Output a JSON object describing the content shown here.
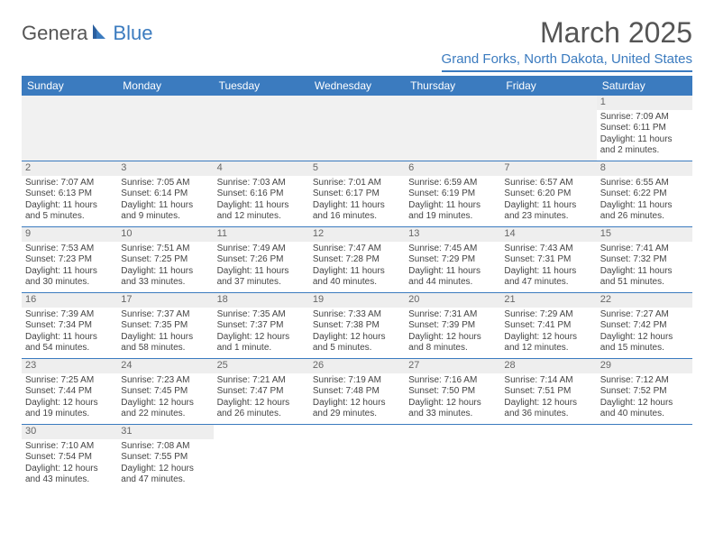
{
  "logo": {
    "part1": "Genera",
    "part2": "Blue"
  },
  "title": "March 2025",
  "location": "Grand Forks, North Dakota, United States",
  "weekdays": [
    "Sunday",
    "Monday",
    "Tuesday",
    "Wednesday",
    "Thursday",
    "Friday",
    "Saturday"
  ],
  "colors": {
    "brand": "#3b7bbf",
    "header_text": "#ffffff",
    "body_text": "#444444",
    "daynum_bg": "#eeeeee",
    "blank_bg": "#f1f1f1"
  },
  "weeks": [
    [
      null,
      null,
      null,
      null,
      null,
      null,
      {
        "n": "1",
        "sr": "Sunrise: 7:09 AM",
        "ss": "Sunset: 6:11 PM",
        "d1": "Daylight: 11 hours",
        "d2": "and 2 minutes."
      }
    ],
    [
      {
        "n": "2",
        "sr": "Sunrise: 7:07 AM",
        "ss": "Sunset: 6:13 PM",
        "d1": "Daylight: 11 hours",
        "d2": "and 5 minutes."
      },
      {
        "n": "3",
        "sr": "Sunrise: 7:05 AM",
        "ss": "Sunset: 6:14 PM",
        "d1": "Daylight: 11 hours",
        "d2": "and 9 minutes."
      },
      {
        "n": "4",
        "sr": "Sunrise: 7:03 AM",
        "ss": "Sunset: 6:16 PM",
        "d1": "Daylight: 11 hours",
        "d2": "and 12 minutes."
      },
      {
        "n": "5",
        "sr": "Sunrise: 7:01 AM",
        "ss": "Sunset: 6:17 PM",
        "d1": "Daylight: 11 hours",
        "d2": "and 16 minutes."
      },
      {
        "n": "6",
        "sr": "Sunrise: 6:59 AM",
        "ss": "Sunset: 6:19 PM",
        "d1": "Daylight: 11 hours",
        "d2": "and 19 minutes."
      },
      {
        "n": "7",
        "sr": "Sunrise: 6:57 AM",
        "ss": "Sunset: 6:20 PM",
        "d1": "Daylight: 11 hours",
        "d2": "and 23 minutes."
      },
      {
        "n": "8",
        "sr": "Sunrise: 6:55 AM",
        "ss": "Sunset: 6:22 PM",
        "d1": "Daylight: 11 hours",
        "d2": "and 26 minutes."
      }
    ],
    [
      {
        "n": "9",
        "sr": "Sunrise: 7:53 AM",
        "ss": "Sunset: 7:23 PM",
        "d1": "Daylight: 11 hours",
        "d2": "and 30 minutes."
      },
      {
        "n": "10",
        "sr": "Sunrise: 7:51 AM",
        "ss": "Sunset: 7:25 PM",
        "d1": "Daylight: 11 hours",
        "d2": "and 33 minutes."
      },
      {
        "n": "11",
        "sr": "Sunrise: 7:49 AM",
        "ss": "Sunset: 7:26 PM",
        "d1": "Daylight: 11 hours",
        "d2": "and 37 minutes."
      },
      {
        "n": "12",
        "sr": "Sunrise: 7:47 AM",
        "ss": "Sunset: 7:28 PM",
        "d1": "Daylight: 11 hours",
        "d2": "and 40 minutes."
      },
      {
        "n": "13",
        "sr": "Sunrise: 7:45 AM",
        "ss": "Sunset: 7:29 PM",
        "d1": "Daylight: 11 hours",
        "d2": "and 44 minutes."
      },
      {
        "n": "14",
        "sr": "Sunrise: 7:43 AM",
        "ss": "Sunset: 7:31 PM",
        "d1": "Daylight: 11 hours",
        "d2": "and 47 minutes."
      },
      {
        "n": "15",
        "sr": "Sunrise: 7:41 AM",
        "ss": "Sunset: 7:32 PM",
        "d1": "Daylight: 11 hours",
        "d2": "and 51 minutes."
      }
    ],
    [
      {
        "n": "16",
        "sr": "Sunrise: 7:39 AM",
        "ss": "Sunset: 7:34 PM",
        "d1": "Daylight: 11 hours",
        "d2": "and 54 minutes."
      },
      {
        "n": "17",
        "sr": "Sunrise: 7:37 AM",
        "ss": "Sunset: 7:35 PM",
        "d1": "Daylight: 11 hours",
        "d2": "and 58 minutes."
      },
      {
        "n": "18",
        "sr": "Sunrise: 7:35 AM",
        "ss": "Sunset: 7:37 PM",
        "d1": "Daylight: 12 hours",
        "d2": "and 1 minute."
      },
      {
        "n": "19",
        "sr": "Sunrise: 7:33 AM",
        "ss": "Sunset: 7:38 PM",
        "d1": "Daylight: 12 hours",
        "d2": "and 5 minutes."
      },
      {
        "n": "20",
        "sr": "Sunrise: 7:31 AM",
        "ss": "Sunset: 7:39 PM",
        "d1": "Daylight: 12 hours",
        "d2": "and 8 minutes."
      },
      {
        "n": "21",
        "sr": "Sunrise: 7:29 AM",
        "ss": "Sunset: 7:41 PM",
        "d1": "Daylight: 12 hours",
        "d2": "and 12 minutes."
      },
      {
        "n": "22",
        "sr": "Sunrise: 7:27 AM",
        "ss": "Sunset: 7:42 PM",
        "d1": "Daylight: 12 hours",
        "d2": "and 15 minutes."
      }
    ],
    [
      {
        "n": "23",
        "sr": "Sunrise: 7:25 AM",
        "ss": "Sunset: 7:44 PM",
        "d1": "Daylight: 12 hours",
        "d2": "and 19 minutes."
      },
      {
        "n": "24",
        "sr": "Sunrise: 7:23 AM",
        "ss": "Sunset: 7:45 PM",
        "d1": "Daylight: 12 hours",
        "d2": "and 22 minutes."
      },
      {
        "n": "25",
        "sr": "Sunrise: 7:21 AM",
        "ss": "Sunset: 7:47 PM",
        "d1": "Daylight: 12 hours",
        "d2": "and 26 minutes."
      },
      {
        "n": "26",
        "sr": "Sunrise: 7:19 AM",
        "ss": "Sunset: 7:48 PM",
        "d1": "Daylight: 12 hours",
        "d2": "and 29 minutes."
      },
      {
        "n": "27",
        "sr": "Sunrise: 7:16 AM",
        "ss": "Sunset: 7:50 PM",
        "d1": "Daylight: 12 hours",
        "d2": "and 33 minutes."
      },
      {
        "n": "28",
        "sr": "Sunrise: 7:14 AM",
        "ss": "Sunset: 7:51 PM",
        "d1": "Daylight: 12 hours",
        "d2": "and 36 minutes."
      },
      {
        "n": "29",
        "sr": "Sunrise: 7:12 AM",
        "ss": "Sunset: 7:52 PM",
        "d1": "Daylight: 12 hours",
        "d2": "and 40 minutes."
      }
    ],
    [
      {
        "n": "30",
        "sr": "Sunrise: 7:10 AM",
        "ss": "Sunset: 7:54 PM",
        "d1": "Daylight: 12 hours",
        "d2": "and 43 minutes."
      },
      {
        "n": "31",
        "sr": "Sunrise: 7:08 AM",
        "ss": "Sunset: 7:55 PM",
        "d1": "Daylight: 12 hours",
        "d2": "and 47 minutes."
      },
      null,
      null,
      null,
      null,
      null
    ]
  ]
}
